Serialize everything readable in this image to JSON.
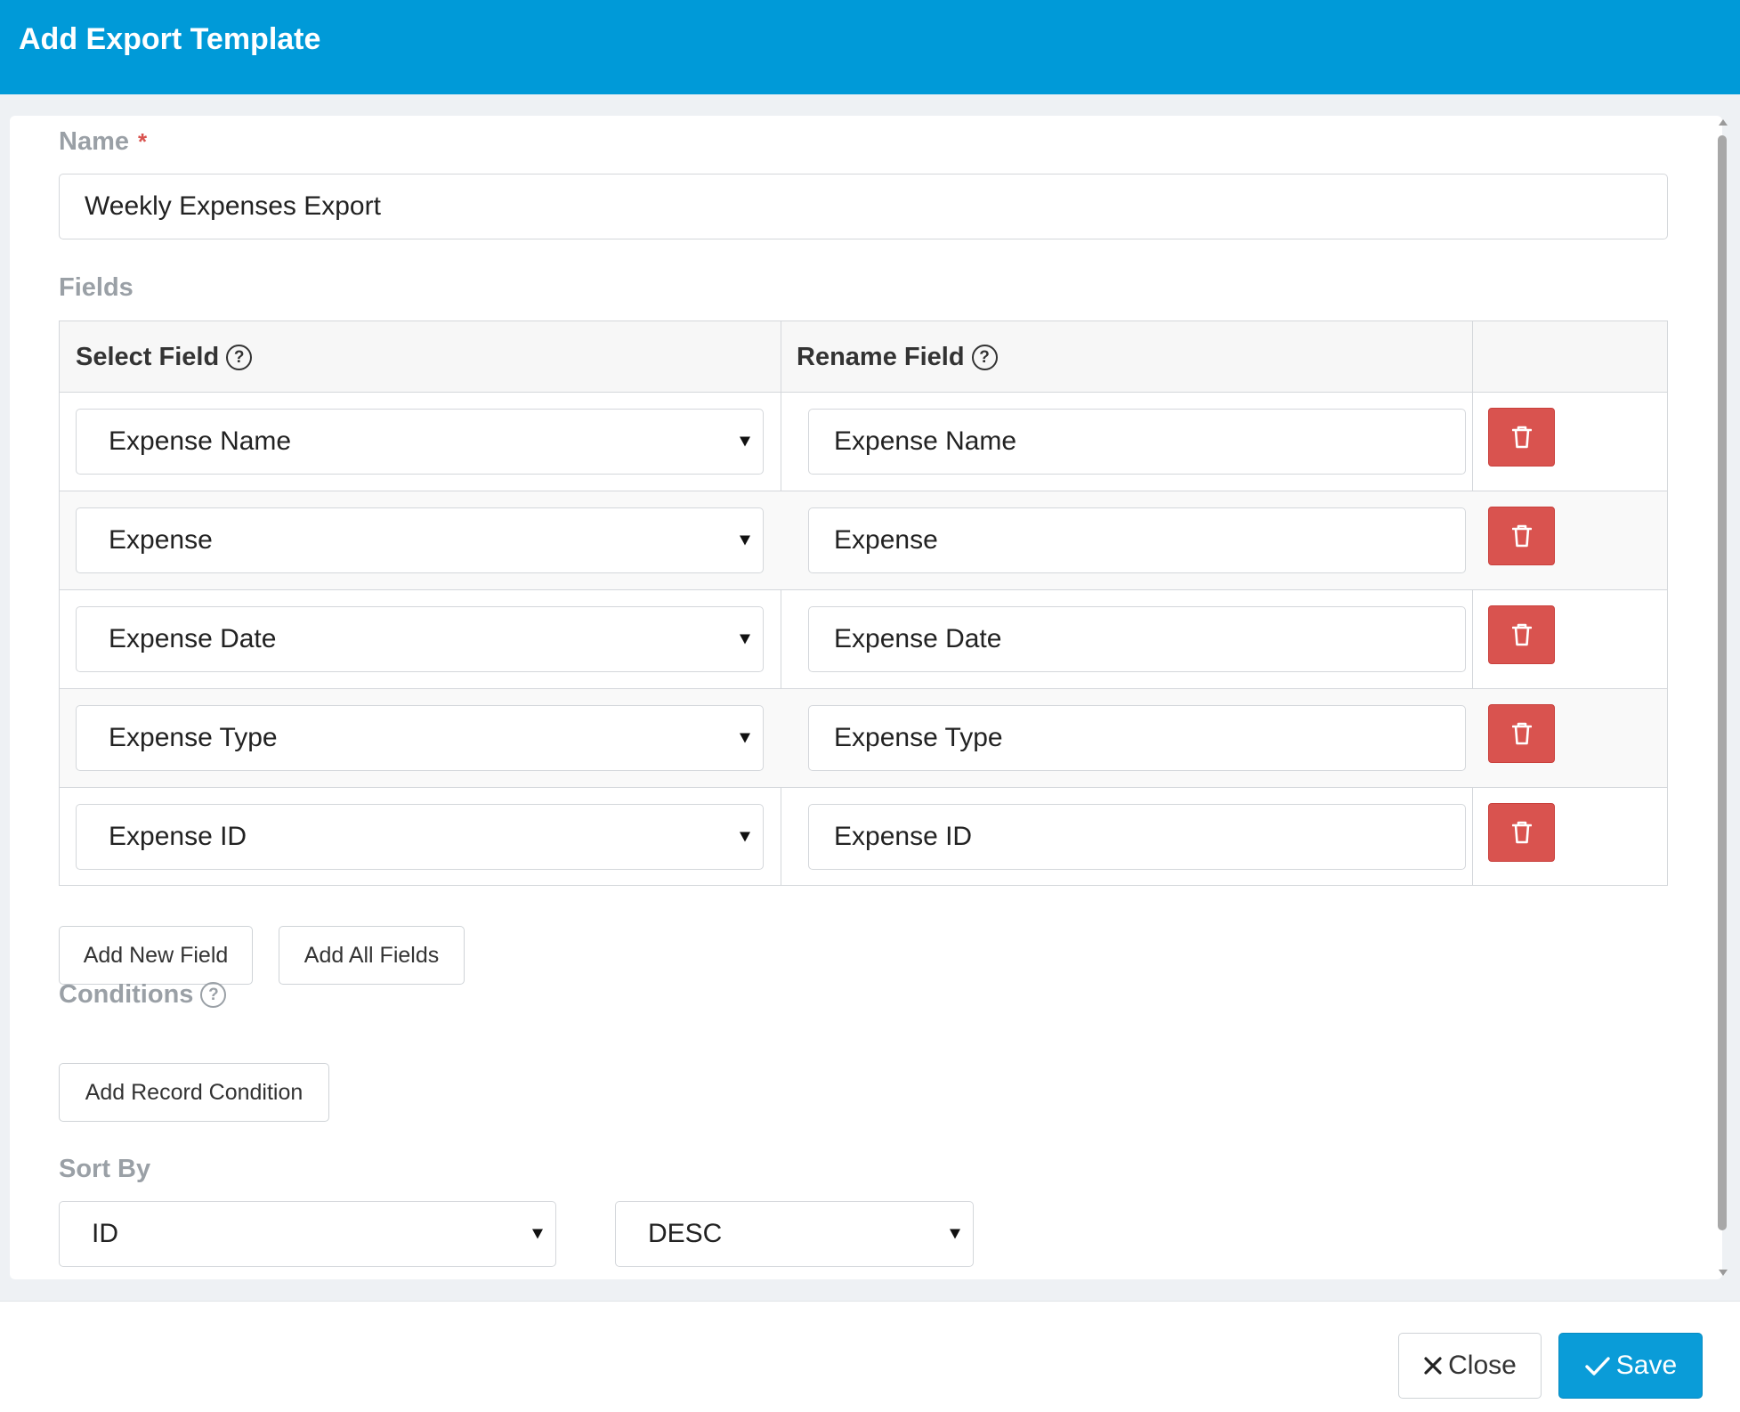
{
  "dialog": {
    "title": "Add Export Template"
  },
  "name_section": {
    "label": "Name",
    "required_mark": "*",
    "value": "Weekly Expenses Export"
  },
  "fields_section": {
    "label": "Fields",
    "columns": {
      "select": "Select Field",
      "rename": "Rename Field",
      "help_glyph": "?"
    },
    "rows": [
      {
        "select": "Expense Name",
        "rename": "Expense Name"
      },
      {
        "select": "Expense",
        "rename": "Expense"
      },
      {
        "select": "Expense Date",
        "rename": "Expense Date"
      },
      {
        "select": "Expense Type",
        "rename": "Expense Type"
      },
      {
        "select": "Expense ID",
        "rename": "Expense ID"
      }
    ],
    "add_new_label": "Add New Field",
    "add_all_label": "Add All Fields"
  },
  "conditions_section": {
    "label": "Conditions",
    "help_glyph": "?",
    "add_label": "Add Record Condition"
  },
  "sort_section": {
    "label": "Sort By",
    "field": "ID",
    "direction": "DESC"
  },
  "footer": {
    "close_label": "Close",
    "save_label": "Save"
  },
  "icons": {
    "delete": "trash-icon",
    "close": "close-icon",
    "save": "check-icon",
    "help": "help-circle-icon"
  },
  "colors": {
    "header": "#009ad8",
    "danger": "#d9534f",
    "primary": "#0a9cd8",
    "muted_label": "#9aa0a6"
  }
}
